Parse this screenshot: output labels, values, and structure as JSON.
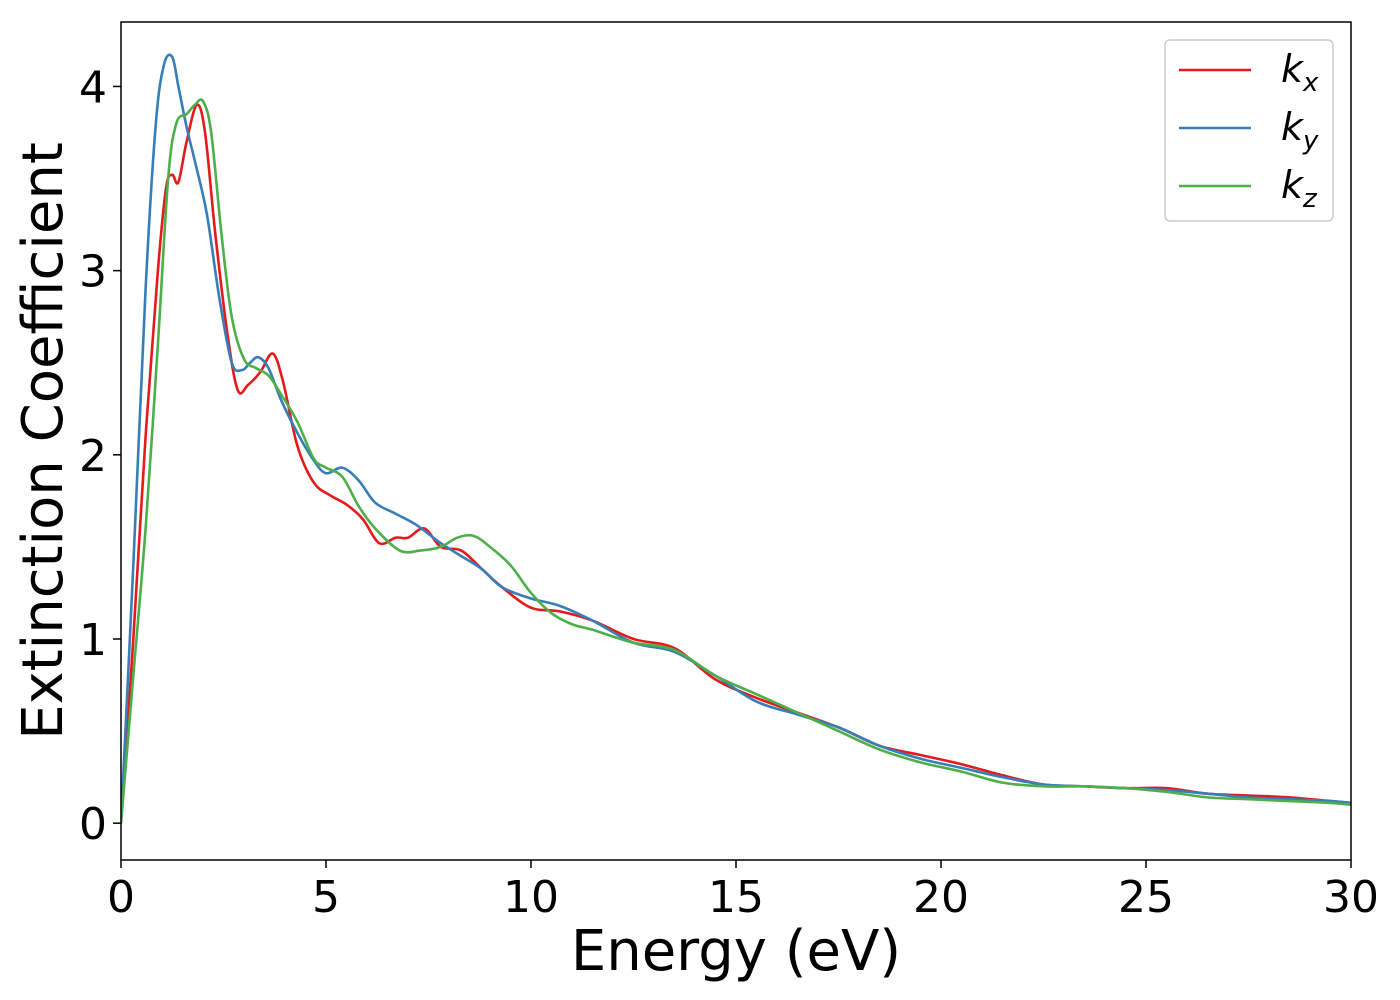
{
  "chart_data": {
    "type": "line",
    "title": "",
    "xlabel": "Energy (eV)",
    "ylabel": "Extinction Coefficient",
    "xlim": [
      0,
      30
    ],
    "ylim": [
      -0.2,
      4.35
    ],
    "xticks": [
      0,
      5,
      10,
      15,
      20,
      25,
      30
    ],
    "yticks": [
      0,
      1,
      2,
      3,
      4
    ],
    "grid": false,
    "legend_position": "top-right",
    "series": [
      {
        "name": "k_x",
        "label_base": "k",
        "label_sub": "x",
        "color": "#e41a1c",
        "x": [
          0,
          0.3,
          0.6,
          0.9,
          1.1,
          1.25,
          1.4,
          1.6,
          1.85,
          2.05,
          2.3,
          2.6,
          2.85,
          3.1,
          3.4,
          3.7,
          3.95,
          4.3,
          4.7,
          5.1,
          5.5,
          5.9,
          6.3,
          6.7,
          7.0,
          7.4,
          7.8,
          8.3,
          8.8,
          9.3,
          10.0,
          10.7,
          11.5,
          12.5,
          13.5,
          14.5,
          15.5,
          16.5,
          17.5,
          18.5,
          19.5,
          20.5,
          21.5,
          22.5,
          23.5,
          24.5,
          25.5,
          26.5,
          27.5,
          28.5,
          29.5,
          30.0
        ],
        "y": [
          0,
          1.0,
          2.1,
          3.0,
          3.45,
          3.52,
          3.48,
          3.7,
          3.9,
          3.75,
          3.2,
          2.65,
          2.35,
          2.38,
          2.45,
          2.55,
          2.4,
          2.05,
          1.85,
          1.78,
          1.73,
          1.65,
          1.52,
          1.55,
          1.55,
          1.6,
          1.5,
          1.48,
          1.38,
          1.28,
          1.17,
          1.15,
          1.1,
          1.0,
          0.95,
          0.78,
          0.68,
          0.6,
          0.52,
          0.42,
          0.37,
          0.32,
          0.26,
          0.21,
          0.2,
          0.19,
          0.19,
          0.16,
          0.15,
          0.14,
          0.12,
          0.11
        ]
      },
      {
        "name": "k_y",
        "label_base": "k",
        "label_sub": "y",
        "color": "#377eb8",
        "x": [
          0,
          0.3,
          0.6,
          0.85,
          1.05,
          1.25,
          1.4,
          1.6,
          1.85,
          2.1,
          2.4,
          2.7,
          2.95,
          3.15,
          3.35,
          3.6,
          3.9,
          4.3,
          4.7,
          5.0,
          5.4,
          5.8,
          6.2,
          6.7,
          7.2,
          7.8,
          8.3,
          8.8,
          9.3,
          10.0,
          10.7,
          11.5,
          12.5,
          13.5,
          14.5,
          15.5,
          16.5,
          17.5,
          18.5,
          19.5,
          20.5,
          21.5,
          22.5,
          23.5,
          24.5,
          25.5,
          26.5,
          27.5,
          28.5,
          29.5,
          30.0
        ],
        "y": [
          0,
          1.4,
          2.9,
          3.8,
          4.12,
          4.16,
          4.0,
          3.78,
          3.55,
          3.3,
          2.85,
          2.5,
          2.46,
          2.5,
          2.53,
          2.47,
          2.3,
          2.12,
          1.97,
          1.9,
          1.93,
          1.86,
          1.74,
          1.68,
          1.62,
          1.52,
          1.45,
          1.38,
          1.28,
          1.22,
          1.18,
          1.1,
          0.98,
          0.93,
          0.8,
          0.66,
          0.59,
          0.52,
          0.42,
          0.35,
          0.3,
          0.25,
          0.21,
          0.2,
          0.19,
          0.18,
          0.16,
          0.14,
          0.13,
          0.12,
          0.11
        ]
      },
      {
        "name": "k_z",
        "label_base": "k",
        "label_sub": "z",
        "color": "#4daf4a",
        "x": [
          0,
          0.3,
          0.6,
          0.9,
          1.15,
          1.35,
          1.6,
          1.8,
          2.0,
          2.2,
          2.45,
          2.7,
          3.0,
          3.3,
          3.6,
          3.9,
          4.3,
          4.7,
          5.0,
          5.4,
          5.8,
          6.2,
          6.8,
          7.3,
          7.8,
          8.2,
          8.6,
          9.0,
          9.5,
          10.0,
          10.5,
          11.0,
          11.5,
          12.5,
          13.5,
          14.5,
          15.5,
          16.5,
          17.5,
          18.5,
          19.5,
          20.5,
          21.5,
          22.5,
          23.5,
          24.5,
          25.5,
          26.5,
          27.5,
          28.5,
          29.5,
          30.0
        ],
        "y": [
          0,
          0.8,
          1.6,
          2.6,
          3.5,
          3.8,
          3.85,
          3.9,
          3.92,
          3.75,
          3.2,
          2.75,
          2.52,
          2.47,
          2.43,
          2.33,
          2.18,
          1.98,
          1.93,
          1.88,
          1.72,
          1.6,
          1.48,
          1.48,
          1.5,
          1.55,
          1.56,
          1.5,
          1.4,
          1.25,
          1.14,
          1.08,
          1.05,
          0.98,
          0.94,
          0.8,
          0.7,
          0.6,
          0.5,
          0.4,
          0.33,
          0.28,
          0.22,
          0.2,
          0.2,
          0.19,
          0.17,
          0.14,
          0.13,
          0.12,
          0.11,
          0.1
        ]
      }
    ]
  }
}
